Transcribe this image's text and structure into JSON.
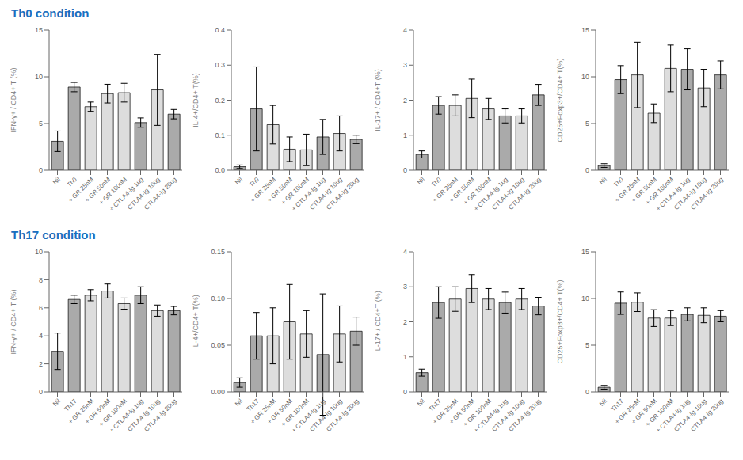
{
  "chart_data": [
    {
      "type": "bar",
      "title": "Th0 condition",
      "color": "#1a6fbf",
      "categories": [
        "Nil",
        "Th0",
        "+ GR 25nM",
        "+ GR 50nM",
        "+ GR 100nM",
        "+ CTLA4-Ig 1ug",
        "CTLA4-Ig 10ug",
        "CTLA4-Ig 20ug"
      ],
      "values": [
        3.1,
        8.9,
        6.8,
        8.2,
        8.3,
        5.1,
        8.6,
        6.0
      ],
      "errors": [
        1.1,
        0.5,
        0.5,
        1.0,
        1.0,
        0.5,
        3.8,
        0.5
      ],
      "ylabel": "IFN-γ+ / CD4+ T (%)",
      "ylim": [
        0,
        15
      ],
      "yticks": [
        0,
        5,
        10,
        15
      ],
      "colors": [
        "#aaaaaa",
        "#aaaaaa",
        "#dddddd",
        "#dddddd",
        "#dddddd",
        "#aaaaaa",
        "#dddddd",
        "#aaaaaa"
      ]
    },
    {
      "type": "bar",
      "categories": [
        "Nil",
        "Th0",
        "+ GR 25nM",
        "+ GR 50nM",
        "+ GR 100nM",
        "+ CTLA4-Ig 1ug",
        "CTLA4-Ig 10ug",
        "CTLA4-Ig 20ug"
      ],
      "values": [
        0.01,
        0.175,
        0.13,
        0.06,
        0.058,
        0.095,
        0.105,
        0.088
      ],
      "errors": [
        0.005,
        0.12,
        0.055,
        0.035,
        0.045,
        0.05,
        0.05,
        0.012
      ],
      "ylabel": "IL-4+/CD4+ T(%)",
      "ylim": [
        0,
        0.4
      ],
      "yticks": [
        {
          "value": 0,
          "label": "0.0"
        },
        0.1,
        0.2,
        0.3,
        0.4
      ],
      "colors": [
        "#aaaaaa",
        "#aaaaaa",
        "#dddddd",
        "#dddddd",
        "#dddddd",
        "#aaaaaa",
        "#dddddd",
        "#aaaaaa"
      ]
    },
    {
      "type": "bar",
      "categories": [
        "Nil",
        "Th0",
        "+ GR 25nM",
        "+ GR 50nM",
        "+ GR 100nM",
        "+ CTLA4-Ig 1ug",
        "CTLA4-Ig 10ug",
        "CTLA4-Ig 20ug"
      ],
      "values": [
        0.45,
        1.85,
        1.85,
        2.05,
        1.75,
        1.55,
        1.55,
        2.15
      ],
      "errors": [
        0.1,
        0.25,
        0.3,
        0.55,
        0.3,
        0.2,
        0.2,
        0.3
      ],
      "ylabel": "IL-17+ / CD4+T (%)",
      "ylim": [
        0,
        4
      ],
      "yticks": [
        0,
        1,
        2,
        3,
        4
      ],
      "colors": [
        "#aaaaaa",
        "#aaaaaa",
        "#dddddd",
        "#dddddd",
        "#dddddd",
        "#aaaaaa",
        "#dddddd",
        "#aaaaaa"
      ]
    },
    {
      "type": "bar",
      "categories": [
        "Nil",
        "Th0",
        "+ GR 25nM",
        "+ GR 50nM",
        "+ GR 100nM",
        "+ CTLA4-Ig 1ug",
        "CTLA4-Ig 10ug",
        "CTLA4-Ig 20ug"
      ],
      "values": [
        0.5,
        9.7,
        10.2,
        6.1,
        10.9,
        10.8,
        8.8,
        10.2
      ],
      "errors": [
        0.2,
        1.5,
        3.5,
        1.0,
        2.5,
        2.2,
        2.0,
        1.5
      ],
      "ylabel": "CD25+Foxp3+/CD4+ T(%)",
      "ylim": [
        0,
        15
      ],
      "yticks": [
        0,
        5,
        10,
        15
      ],
      "colors": [
        "#aaaaaa",
        "#aaaaaa",
        "#dddddd",
        "#dddddd",
        "#dddddd",
        "#aaaaaa",
        "#dddddd",
        "#aaaaaa"
      ]
    },
    {
      "type": "bar",
      "title": "Th17 condition",
      "color": "#1a6fbf",
      "categories": [
        "Nil",
        "Th17",
        "+ GR 25nM",
        "+ GR 50nM",
        "+ GR 100nM",
        "+ CTLA4-Ig 1ug",
        "CTLA4-Ig 10ug",
        "CTLA4-Ig 20ug"
      ],
      "values": [
        2.9,
        6.6,
        6.9,
        7.2,
        6.3,
        6.9,
        5.8,
        5.8
      ],
      "errors": [
        1.3,
        0.3,
        0.4,
        0.5,
        0.4,
        0.6,
        0.4,
        0.3
      ],
      "ylabel": "IFN-γ+ / CD4+ T (%)",
      "ylim": [
        0,
        10
      ],
      "yticks": [
        0,
        2,
        4,
        6,
        8,
        10
      ],
      "colors": [
        "#aaaaaa",
        "#aaaaaa",
        "#dddddd",
        "#dddddd",
        "#dddddd",
        "#aaaaaa",
        "#dddddd",
        "#aaaaaa"
      ]
    },
    {
      "type": "bar",
      "categories": [
        "Nil",
        "Th17",
        "+ GR 25nM",
        "+ GR 50nM",
        "+ GR 100nM",
        "+ CTLA4-Ig 1ug",
        "CTLA4-Ig 10ug",
        "CTLA4-Ig 20ug"
      ],
      "values": [
        0.01,
        0.06,
        0.06,
        0.075,
        0.062,
        0.04,
        0.062,
        0.065
      ],
      "errors": [
        0.005,
        0.025,
        0.03,
        0.04,
        0.025,
        0.065,
        0.03,
        0.015
      ],
      "ylabel": "IL-4+/CD4+ T(%)",
      "ylim": [
        0,
        0.15
      ],
      "yticks": [
        {
          "value": 0,
          "label": "0.00"
        },
        0.05,
        {
          "value": 0.1,
          "label": "0.10"
        },
        0.15
      ],
      "colors": [
        "#aaaaaa",
        "#aaaaaa",
        "#dddddd",
        "#dddddd",
        "#dddddd",
        "#aaaaaa",
        "#dddddd",
        "#aaaaaa"
      ]
    },
    {
      "type": "bar",
      "categories": [
        "Nil",
        "Th17",
        "+ GR 25nM",
        "+ GR 50nM",
        "+ GR 100nM",
        "+ CTLA4-Ig 1ug",
        "CTLA4-Ig 10ug",
        "CTLA4-Ig 20ug"
      ],
      "values": [
        0.55,
        2.55,
        2.65,
        2.95,
        2.65,
        2.55,
        2.65,
        2.45
      ],
      "errors": [
        0.1,
        0.45,
        0.35,
        0.4,
        0.3,
        0.3,
        0.3,
        0.25
      ],
      "ylabel": "IL-17+ / CD4+T (%)",
      "ylim": [
        0,
        4
      ],
      "yticks": [
        0,
        1,
        2,
        3,
        4
      ],
      "colors": [
        "#aaaaaa",
        "#aaaaaa",
        "#dddddd",
        "#dddddd",
        "#dddddd",
        "#aaaaaa",
        "#dddddd",
        "#aaaaaa"
      ]
    },
    {
      "type": "bar",
      "categories": [
        "Nil",
        "Th17",
        "+ GR 25nM",
        "+ GR 50nM",
        "+ GR 100nM",
        "+ CTLA4-Ig 1ug",
        "CTLA4-Ig 10ug",
        "CTLA4-Ig 20ug"
      ],
      "values": [
        0.5,
        9.5,
        9.6,
        7.9,
        7.9,
        8.3,
        8.2,
        8.1
      ],
      "errors": [
        0.2,
        1.2,
        1.0,
        0.9,
        0.8,
        0.7,
        0.8,
        0.6
      ],
      "ylabel": "CD25+Foxp3+/CD4+ T(%)",
      "ylim": [
        0,
        15
      ],
      "yticks": [
        0,
        5,
        10,
        15
      ],
      "colors": [
        "#aaaaaa",
        "#aaaaaa",
        "#dddddd",
        "#dddddd",
        "#dddddd",
        "#aaaaaa",
        "#dddddd",
        "#aaaaaa"
      ]
    }
  ]
}
